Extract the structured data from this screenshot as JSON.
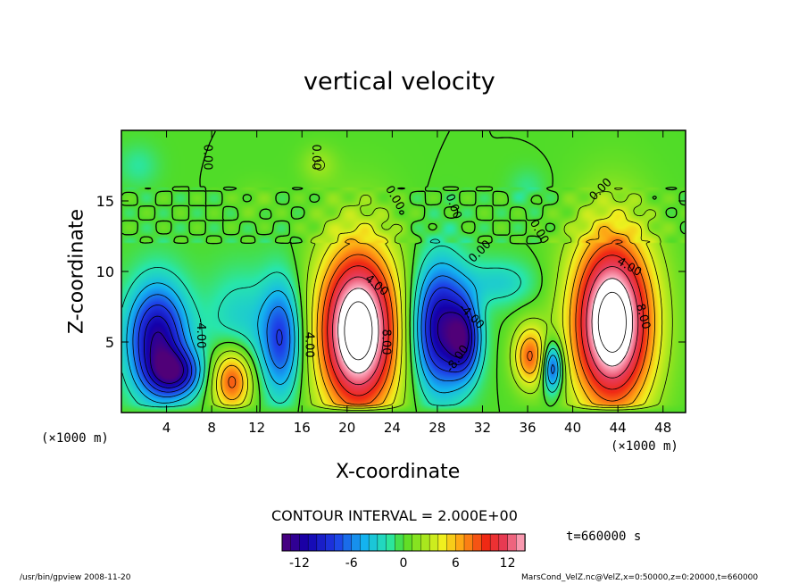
{
  "chart_data": {
    "type": "heatmap",
    "title": "vertical velocity",
    "xlabel": "X-coordinate",
    "ylabel": "Z-coordinate",
    "x_unit_left": "(×1000 m)",
    "x_unit_right": "(×1000 m)",
    "xlim": [
      0,
      50
    ],
    "ylim": [
      0,
      20
    ],
    "x_ticks": [
      4,
      8,
      12,
      16,
      20,
      24,
      28,
      32,
      36,
      40,
      44,
      48
    ],
    "y_ticks": [
      5,
      10,
      15
    ],
    "contour_interval": "CONTOUR INTERVAL = 2.000E+00",
    "contour_labels": [
      {
        "x": 7.6,
        "y": 18.1,
        "text": "0.00",
        "angle": 90
      },
      {
        "x": 17.2,
        "y": 18.1,
        "text": "0.00",
        "angle": 90
      },
      {
        "x": 24.2,
        "y": 15.2,
        "text": "0.00",
        "angle": 60
      },
      {
        "x": 29.4,
        "y": 14.6,
        "text": "0.00",
        "angle": 70
      },
      {
        "x": 31.8,
        "y": 11.4,
        "text": "0.00",
        "angle": -45
      },
      {
        "x": 42.5,
        "y": 15.8,
        "text": "0.00",
        "angle": -45
      },
      {
        "x": 37.0,
        "y": 12.8,
        "text": "0.00",
        "angle": 60
      },
      {
        "x": 22.6,
        "y": 9.0,
        "text": "4.00",
        "angle": 40
      },
      {
        "x": 23.4,
        "y": 5.0,
        "text": "8.00",
        "angle": 90
      },
      {
        "x": 16.6,
        "y": 4.8,
        "text": "4.00",
        "angle": 90
      },
      {
        "x": 7.0,
        "y": 5.6,
        "text": "-4.00",
        "angle": 90
      },
      {
        "x": 31.0,
        "y": 6.8,
        "text": "-4.00",
        "angle": 45
      },
      {
        "x": 29.8,
        "y": 3.8,
        "text": "-8.00",
        "angle": -55
      },
      {
        "x": 45.0,
        "y": 10.3,
        "text": "4.00",
        "angle": 30
      },
      {
        "x": 46.2,
        "y": 6.8,
        "text": "8.00",
        "angle": 75
      }
    ],
    "blobs": [
      {
        "x": 21.0,
        "y": 5.8,
        "rx": 3.6,
        "ry": 6.0,
        "peak": 18
      },
      {
        "x": 43.5,
        "y": 6.4,
        "rx": 3.6,
        "ry": 6.2,
        "peak": 18
      },
      {
        "x": 9.8,
        "y": 2.3,
        "rx": 1.8,
        "ry": 2.3,
        "peak": 9
      },
      {
        "x": 36.2,
        "y": 4.0,
        "rx": 1.5,
        "ry": 2.2,
        "peak": 8
      },
      {
        "x": 3.2,
        "y": 5.2,
        "rx": 2.6,
        "ry": 3.8,
        "peak": -12
      },
      {
        "x": 4.8,
        "y": 2.8,
        "rx": 2.2,
        "ry": 1.6,
        "peak": -9
      },
      {
        "x": 14.2,
        "y": 5.2,
        "rx": 1.8,
        "ry": 4.0,
        "peak": -8
      },
      {
        "x": 28.2,
        "y": 6.0,
        "rx": 2.4,
        "ry": 4.4,
        "peak": -12
      },
      {
        "x": 30.4,
        "y": 5.2,
        "rx": 1.4,
        "ry": 2.6,
        "peak": -9
      },
      {
        "x": 38.2,
        "y": 3.2,
        "rx": 0.9,
        "ry": 1.8,
        "peak": -9
      },
      {
        "x": 33.5,
        "y": 9.2,
        "rx": 3.2,
        "ry": 1.6,
        "peak": -3
      },
      {
        "x": 10.5,
        "y": 6.5,
        "rx": 3.0,
        "ry": 3.5,
        "peak": -3
      },
      {
        "x": 17.5,
        "y": 17.6,
        "rx": 1.6,
        "ry": 1.3,
        "peak": 2
      },
      {
        "x": 1.5,
        "y": 17.5,
        "rx": 1.8,
        "ry": 1.5,
        "peak": -1.5
      },
      {
        "x": 12.0,
        "y": 15.0,
        "rx": 2.0,
        "ry": 1.5,
        "peak": 0.8
      },
      {
        "x": 36.0,
        "y": 16.0,
        "rx": 1.6,
        "ry": 1.3,
        "peak": -1.2
      }
    ],
    "colorbar": {
      "min": -14,
      "max": 14,
      "ticks": [
        "-12",
        "-6",
        "0",
        "6",
        "12"
      ],
      "tick_values": [
        -12,
        -6,
        0,
        6,
        12
      ]
    },
    "time_label": "t=660000 s",
    "footer_left": "/usr/bin/gpview  2008-11-20",
    "footer_right": "MarsCond_VelZ.nc@VelZ,x=0:50000,z=0:20000,t=660000"
  }
}
